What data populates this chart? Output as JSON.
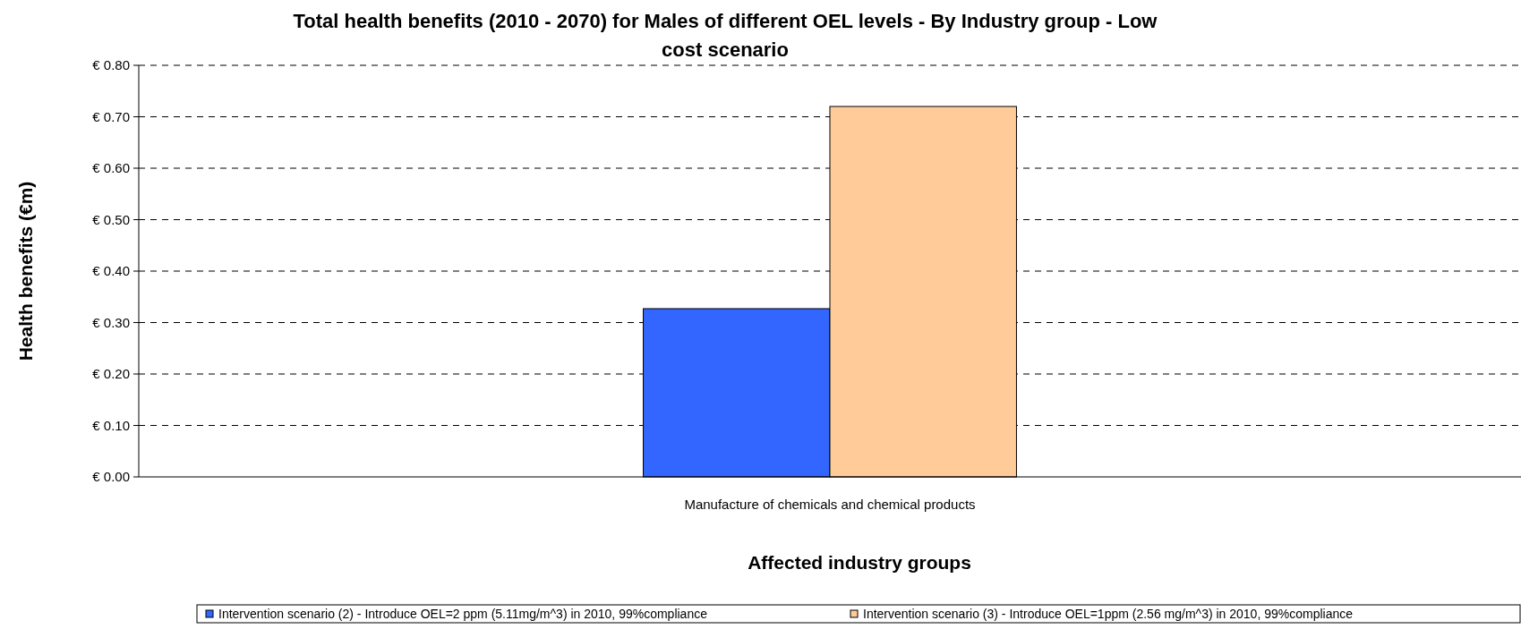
{
  "chart_data": {
    "type": "bar",
    "title": "Total health benefits (2010 - 2070) for Males of different OEL levels - By Industry group - Low cost scenario",
    "xlabel": "Affected industry groups",
    "ylabel": "Health benefits (€m)",
    "categories": [
      "Manufacture of chemicals and chemical products"
    ],
    "series": [
      {
        "name": "Intervention scenario (2) - Introduce OEL=2 ppm (5.11mg/m^3) in 2010, 99%compliance",
        "color": "#3366ff",
        "values": [
          0.327
        ]
      },
      {
        "name": "Intervention scenario (3) - Introduce OEL=1ppm (2.56 mg/m^3) in 2010, 99%compliance",
        "color": "#ffcc99",
        "values": [
          0.72
        ]
      }
    ],
    "ylim": [
      0,
      0.8
    ],
    "yticks": [
      {
        "value": 0,
        "label": "€ 0.00"
      },
      {
        "value": 0.1,
        "label": "€ 0.10"
      },
      {
        "value": 0.2,
        "label": "€ 0.20"
      },
      {
        "value": 0.3,
        "label": "€ 0.30"
      },
      {
        "value": 0.4,
        "label": "€ 0.40"
      },
      {
        "value": 0.5,
        "label": "€ 0.50"
      },
      {
        "value": 0.6,
        "label": "€ 0.60"
      },
      {
        "value": 0.7,
        "label": "€ 0.70"
      },
      {
        "value": 0.8,
        "label": "€ 0.80"
      }
    ],
    "grid": "y",
    "legend": "bottom"
  }
}
